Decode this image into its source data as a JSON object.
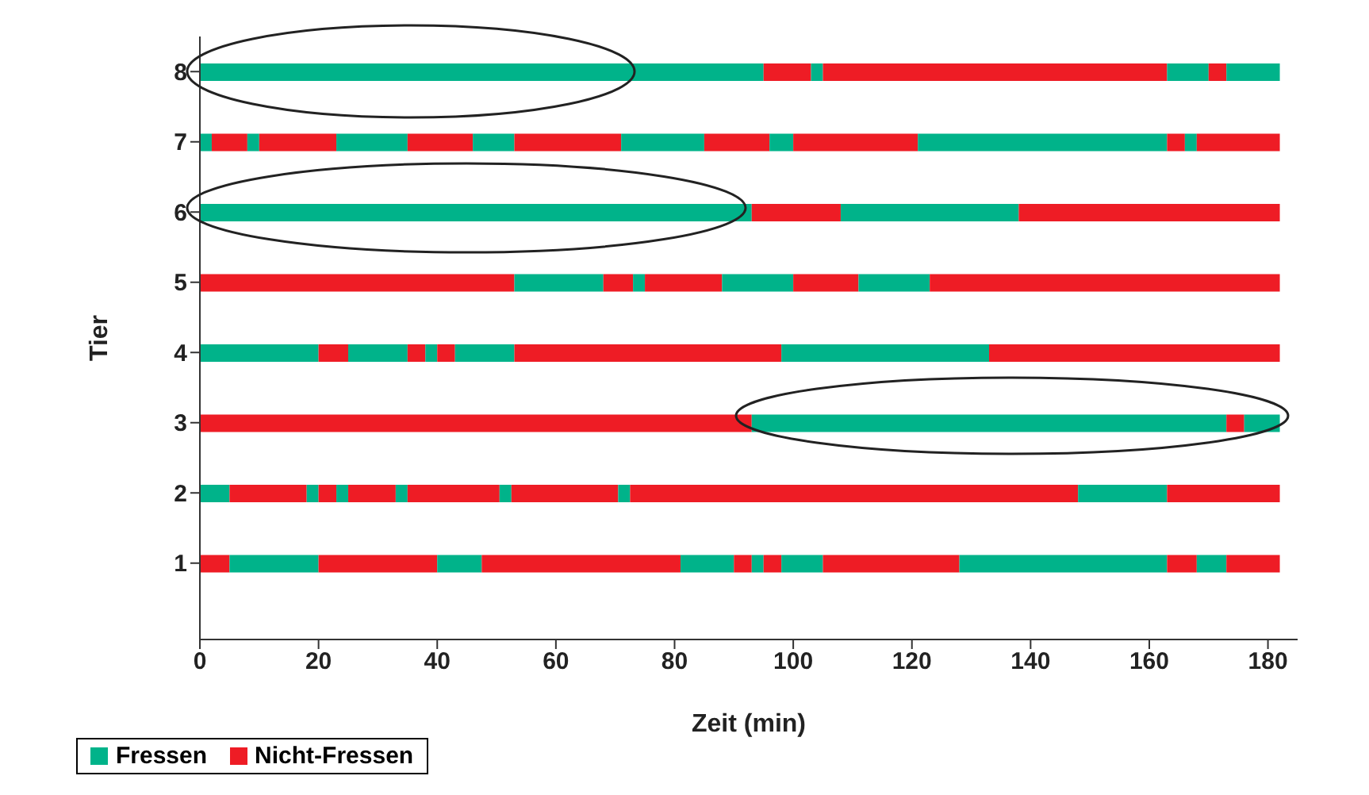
{
  "chart_data": {
    "type": "bar",
    "orientation": "horizontal",
    "stacked": true,
    "xlabel": "Zeit (min)",
    "ylabel": "Tier",
    "categories": [
      "8",
      "7",
      "6",
      "5",
      "4",
      "3",
      "2",
      "1"
    ],
    "xlim": [
      0,
      185
    ],
    "xticks": [
      0,
      20,
      40,
      60,
      80,
      100,
      120,
      140,
      160,
      180
    ],
    "grid": false,
    "legend": "bottom",
    "series": [
      {
        "name": "Fressen",
        "color": "#00b38a",
        "values": [
          95,
          2,
          93,
          0,
          20,
          0,
          5,
          0
        ]
      },
      {
        "name": "Nicht-Fressen",
        "color": "#ee1c25",
        "values": [
          8,
          6,
          15,
          53,
          5,
          93,
          13,
          5
        ]
      },
      {
        "color": "#00b38a",
        "values": [
          2,
          2,
          30,
          15,
          10,
          80,
          2,
          15
        ]
      },
      {
        "color": "#ee1c25",
        "values": [
          58,
          13,
          44,
          5,
          3,
          3,
          3,
          20
        ]
      },
      {
        "color": "#00b38a",
        "values": [
          7,
          12,
          null,
          2,
          2,
          6,
          2,
          7.5
        ]
      },
      {
        "color": "#ee1c25",
        "values": [
          3,
          11,
          null,
          13,
          3,
          null,
          8,
          33.5
        ]
      },
      {
        "color": "#00b38a",
        "values": [
          9,
          7,
          null,
          12,
          10,
          null,
          2,
          9
        ]
      },
      {
        "color": "#ee1c25",
        "values": [
          null,
          18,
          null,
          11,
          45,
          null,
          15.5,
          3
        ]
      },
      {
        "color": "#00b38a",
        "values": [
          null,
          14,
          null,
          12,
          35,
          null,
          2,
          2
        ]
      },
      {
        "color": "#ee1c25",
        "values": [
          null,
          11,
          null,
          59,
          49,
          null,
          18,
          3
        ]
      },
      {
        "color": "#00b38a",
        "values": [
          null,
          4,
          null,
          null,
          null,
          null,
          2,
          7
        ]
      },
      {
        "color": "#ee1c25",
        "values": [
          null,
          21,
          null,
          null,
          null,
          null,
          75.5,
          23
        ]
      },
      {
        "color": "#00b38a",
        "values": [
          null,
          42,
          null,
          null,
          null,
          null,
          15,
          35
        ]
      },
      {
        "color": "#ee1c25",
        "values": [
          null,
          3,
          null,
          null,
          null,
          null,
          19,
          5
        ]
      },
      {
        "color": "#00b38a",
        "values": [
          null,
          2,
          null,
          null,
          null,
          null,
          null,
          5
        ]
      },
      {
        "color": "#ee1c25",
        "values": [
          null,
          14,
          null,
          null,
          null,
          null,
          null,
          9
        ]
      }
    ]
  }
}
